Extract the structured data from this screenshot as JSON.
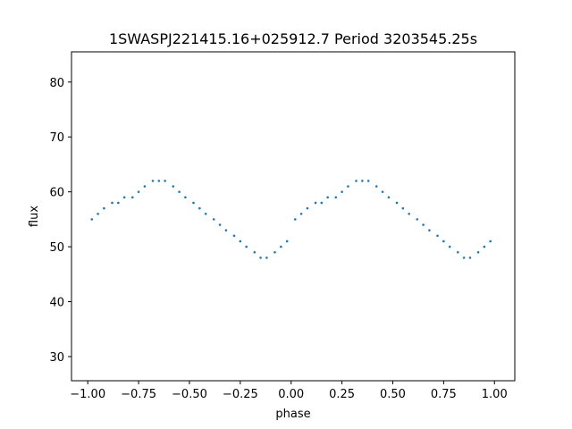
{
  "chart_data": {
    "type": "scatter",
    "title": "1SWASPJ221415.16+025912.7 Period 3203545.25s",
    "xlabel": "phase",
    "ylabel": "flux",
    "xlim": [
      -1.08,
      1.1
    ],
    "ylim": [
      25.6,
      85.5
    ],
    "xticks": [
      -1.0,
      -0.75,
      -0.5,
      -0.25,
      0.0,
      0.25,
      0.5,
      0.75,
      1.0
    ],
    "xtick_labels": [
      "−1.00",
      "−0.75",
      "−0.50",
      "−0.25",
      "0.00",
      "0.25",
      "0.50",
      "0.75",
      "1.00"
    ],
    "yticks": [
      30,
      40,
      50,
      60,
      70,
      80
    ],
    "ytick_labels": [
      "30",
      "40",
      "50",
      "60",
      "70",
      "80"
    ],
    "grid": false,
    "marker_color": "#1f77b4",
    "series": [
      {
        "description_points": "phase-folded light curve repeated over two cycles (phase -1 to 1); main bands near flux 46, 52, 56 and 62",
        "x": [
          -0.98,
          -0.95,
          -0.92,
          -0.88,
          -0.85,
          -0.82,
          -0.78,
          -0.75,
          -0.72,
          -0.68,
          -0.65,
          -0.62,
          -0.58,
          -0.55,
          -0.52,
          -0.48,
          -0.45,
          -0.42,
          -0.38,
          -0.35,
          -0.32,
          -0.28,
          -0.25,
          -0.22,
          -0.18,
          -0.15,
          -0.12,
          -0.08,
          -0.05,
          -0.02,
          0.02,
          0.05,
          0.08,
          0.12,
          0.15,
          0.18,
          0.22,
          0.25,
          0.28,
          0.32,
          0.35,
          0.38,
          0.42,
          0.45,
          0.48,
          0.52,
          0.55,
          0.58,
          0.62,
          0.65,
          0.68,
          0.72,
          0.75,
          0.78,
          0.82,
          0.85,
          0.88,
          0.92,
          0.95,
          0.98
        ],
        "y": [
          55,
          56,
          57,
          58,
          58,
          59,
          59,
          60,
          61,
          62,
          62,
          62,
          61,
          60,
          59,
          58,
          57,
          56,
          55,
          54,
          53,
          52,
          51,
          50,
          49,
          48,
          48,
          49,
          50,
          51,
          55,
          56,
          57,
          58,
          58,
          59,
          59,
          60,
          61,
          62,
          62,
          62,
          61,
          60,
          59,
          58,
          57,
          56,
          55,
          54,
          53,
          52,
          51,
          50,
          49,
          48,
          48,
          49,
          50,
          51
        ]
      }
    ]
  }
}
